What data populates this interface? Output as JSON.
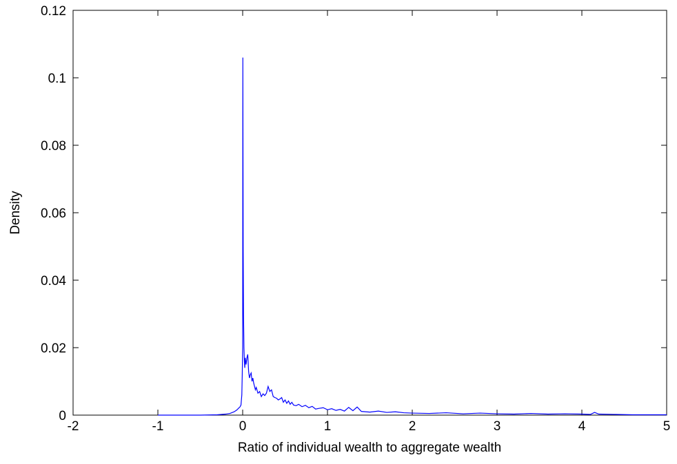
{
  "chart_data": {
    "type": "line",
    "title": "",
    "xlabel": "Ratio of individual wealth to aggregate wealth",
    "ylabel": "Density",
    "xlim": [
      -2,
      5
    ],
    "ylim": [
      0,
      0.12
    ],
    "xticks": [
      -2,
      -1,
      0,
      1,
      2,
      3,
      4,
      5
    ],
    "yticks": [
      0,
      0.02,
      0.04,
      0.06,
      0.08,
      0.1,
      0.12
    ],
    "xtick_labels": [
      "-2",
      "-1",
      "0",
      "1",
      "2",
      "3",
      "4",
      "5"
    ],
    "ytick_labels": [
      "0",
      "0.02",
      "0.04",
      "0.06",
      "0.08",
      "0.1",
      "0.12"
    ],
    "grid": false,
    "line_color": "#0000ff",
    "axis_color": "#000000",
    "series": [
      {
        "x": [
          -1.0,
          -0.5,
          -0.3,
          -0.2,
          -0.15,
          -0.1,
          -0.07,
          -0.05,
          -0.03,
          -0.02,
          -0.01,
          -0.005,
          0.0,
          0.002,
          0.006,
          0.01,
          0.015,
          0.02,
          0.025,
          0.03,
          0.04,
          0.05,
          0.06,
          0.07,
          0.08,
          0.09,
          0.1,
          0.11,
          0.12,
          0.13,
          0.14,
          0.15,
          0.16,
          0.18,
          0.2,
          0.22,
          0.24,
          0.26,
          0.28,
          0.3,
          0.32,
          0.34,
          0.36,
          0.38,
          0.4,
          0.42,
          0.44,
          0.46,
          0.48,
          0.5,
          0.52,
          0.54,
          0.56,
          0.58,
          0.6,
          0.63,
          0.66,
          0.7,
          0.74,
          0.78,
          0.82,
          0.86,
          0.9,
          0.95,
          1.0,
          1.05,
          1.1,
          1.15,
          1.2,
          1.25,
          1.3,
          1.35,
          1.4,
          1.5,
          1.6,
          1.7,
          1.8,
          1.9,
          2.0,
          2.2,
          2.4,
          2.6,
          2.8,
          3.0,
          3.2,
          3.4,
          3.6,
          3.8,
          4.0,
          4.1,
          4.15,
          4.2,
          4.4,
          4.6,
          4.8,
          5.0
        ],
        "y": [
          0.0,
          0.0,
          0.0001,
          0.0003,
          0.0005,
          0.001,
          0.0015,
          0.002,
          0.0025,
          0.003,
          0.006,
          0.012,
          0.02,
          0.106,
          0.05,
          0.03,
          0.02,
          0.016,
          0.014,
          0.017,
          0.015,
          0.017,
          0.018,
          0.013,
          0.011,
          0.012,
          0.0125,
          0.01,
          0.011,
          0.0095,
          0.0085,
          0.0075,
          0.0082,
          0.0065,
          0.007,
          0.0055,
          0.0063,
          0.0058,
          0.0065,
          0.0085,
          0.007,
          0.0075,
          0.0055,
          0.0052,
          0.005,
          0.0045,
          0.0048,
          0.0052,
          0.0038,
          0.0045,
          0.0035,
          0.0042,
          0.0032,
          0.0038,
          0.003,
          0.0028,
          0.0032,
          0.0025,
          0.0029,
          0.0022,
          0.0026,
          0.0018,
          0.002,
          0.0022,
          0.0016,
          0.0019,
          0.0014,
          0.0017,
          0.0012,
          0.0023,
          0.0013,
          0.0024,
          0.0011,
          0.0009,
          0.0012,
          0.0008,
          0.001,
          0.0007,
          0.0006,
          0.0005,
          0.0007,
          0.0004,
          0.0006,
          0.0004,
          0.0003,
          0.0005,
          0.0003,
          0.0004,
          0.0003,
          0.0002,
          0.0008,
          0.0003,
          0.0002,
          0.0001,
          0.0001,
          0.0001
        ]
      }
    ]
  }
}
